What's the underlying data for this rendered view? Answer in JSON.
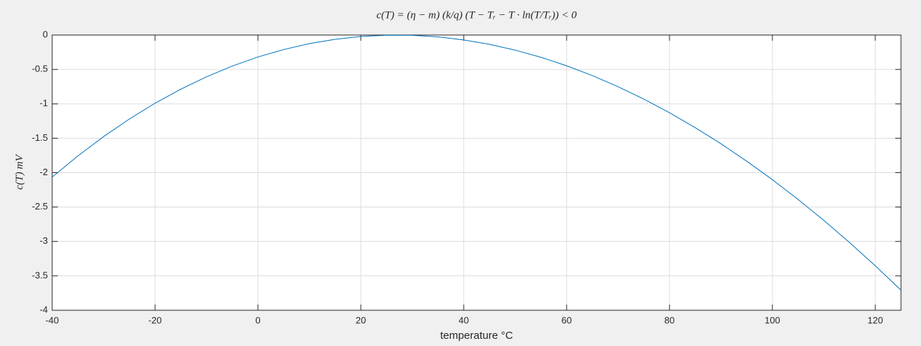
{
  "chart_data": {
    "type": "line",
    "title": "c(T) = (η − m) (k/q) (T − Tᵣ − T · ln(T/Tᵣ)) < 0",
    "x_label": "temperature °C",
    "y_label": "c(T) mV",
    "x": [
      -40,
      -35,
      -30,
      -25,
      -20,
      -15,
      -10,
      -5,
      0,
      5,
      10,
      15,
      20,
      25,
      30,
      35,
      40,
      45,
      50,
      55,
      60,
      65,
      70,
      75,
      80,
      85,
      90,
      95,
      100,
      105,
      110,
      115,
      120,
      125
    ],
    "series": [
      {
        "name": "c(T)",
        "color": "#0072bd",
        "values": [
          -2.065,
          -1.757,
          -1.476,
          -1.221,
          -0.991,
          -0.787,
          -0.607,
          -0.451,
          -0.319,
          -0.211,
          -0.125,
          -0.062,
          -0.021,
          -0.002,
          -0.004,
          -0.027,
          -0.071,
          -0.135,
          -0.219,
          -0.323,
          -0.447,
          -0.589,
          -0.751,
          -0.931,
          -1.129,
          -1.346,
          -1.58,
          -1.833,
          -2.102,
          -2.39,
          -2.694,
          -3.015,
          -3.353,
          -3.708
        ]
      }
    ],
    "xlim": [
      -40,
      125
    ],
    "xticks": [
      -40,
      -20,
      0,
      20,
      40,
      60,
      80,
      100,
      120
    ],
    "ylim": [
      -4,
      0
    ],
    "yticks": [
      -4,
      -3.5,
      -3,
      -2.5,
      -2,
      -1.5,
      -1,
      -0.5,
      0
    ],
    "grid": true
  }
}
